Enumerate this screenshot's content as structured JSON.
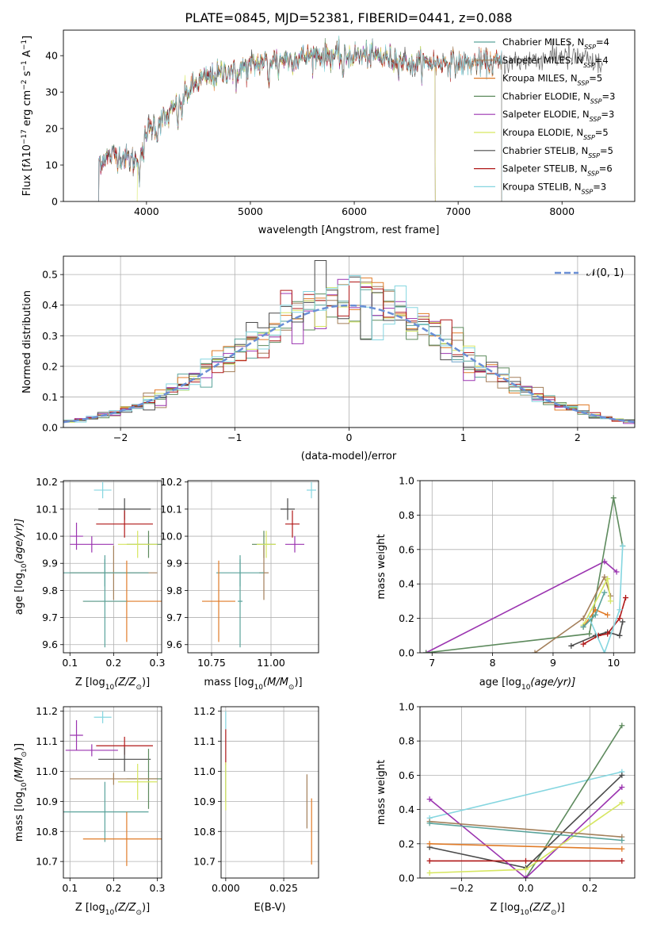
{
  "figure": {
    "title": "PLATE=0845, MJD=52381, FIBERID=0441, z=0.088"
  },
  "models": [
    {
      "name": "Chabrier MILES",
      "nssp": "4",
      "color": "#5aa39b"
    },
    {
      "name": "Salpeter MILES",
      "nssp": "4",
      "color": "#a37f5a"
    },
    {
      "name": "Kroupa MILES",
      "nssp": "5",
      "color": "#e07b28"
    },
    {
      "name": "Chabrier ELODIE",
      "nssp": "3",
      "color": "#5d8a5d"
    },
    {
      "name": "Salpeter ELODIE",
      "nssp": "3",
      "color": "#9b34b0"
    },
    {
      "name": "Kroupa ELODIE",
      "nssp": "5",
      "color": "#d6e660"
    },
    {
      "name": "Chabrier STELIB",
      "nssp": "5",
      "color": "#4a4a4a"
    },
    {
      "name": "Salpeter STELIB",
      "nssp": "6",
      "color": "#b01818"
    },
    {
      "name": "Kroupa STELIB",
      "nssp": "3",
      "color": "#85d6e0"
    }
  ],
  "chart_data": [
    {
      "id": "spectrum",
      "type": "line",
      "xlabel": "wavelength [Angstrom, rest frame]",
      "ylabel_parts": [
        "Flux [f",
        "λ",
        "10",
        "−17",
        " erg cm",
        "−2",
        " s",
        "−1",
        " A",
        "−1",
        "]"
      ],
      "xlim": [
        3200,
        8700
      ],
      "ylim": [
        0,
        47
      ],
      "xticks": [
        4000,
        5000,
        6000,
        7000,
        8000
      ],
      "yticks": [
        0,
        10,
        20,
        30,
        40
      ],
      "legend_position": "top-right",
      "legend_nssp_label": "SSP",
      "continuum": {
        "x": [
          3500,
          3600,
          3700,
          3800,
          3900,
          4000,
          4100,
          4200,
          4300,
          4400,
          4500,
          4600,
          4800,
          5000,
          5200,
          5400,
          5600,
          5800,
          6000,
          6200,
          6400,
          6600,
          6800,
          7000,
          7200,
          7400,
          7600,
          7800,
          8000,
          8200,
          8400
        ],
        "y": [
          10,
          12,
          13,
          12,
          11,
          19,
          22,
          23,
          27,
          30,
          33,
          34,
          36,
          37,
          39,
          39,
          40,
          40,
          40,
          40,
          39,
          38,
          38,
          38,
          38,
          38,
          39,
          39,
          40,
          39,
          37
        ]
      },
      "absorption_lines": [
        {
          "x": 3933,
          "depth": 6
        },
        {
          "x": 3968,
          "depth": 5
        },
        {
          "x": 4102,
          "depth": 4
        },
        {
          "x": 4305,
          "depth": 5
        },
        {
          "x": 4341,
          "depth": 4
        },
        {
          "x": 4861,
          "depth": 5
        },
        {
          "x": 5175,
          "depth": 7
        },
        {
          "x": 5270,
          "depth": 3
        },
        {
          "x": 5893,
          "depth": 6
        },
        {
          "x": 6563,
          "depth": 3
        },
        {
          "x": 7600,
          "depth": 3
        }
      ],
      "model_cutoffs": [
        {
          "model": "Chabrier MILES",
          "min": 3540,
          "max": 7420
        },
        {
          "model": "Salpeter MILES",
          "min": 3540,
          "max": 7420
        },
        {
          "model": "Kroupa MILES",
          "min": 3540,
          "max": 7420
        },
        {
          "model": "Chabrier ELODIE",
          "min": 3540,
          "max": 6780
        },
        {
          "model": "Salpeter ELODIE",
          "min": 3540,
          "max": 6780
        },
        {
          "model": "Kroupa ELODIE",
          "min": 3910,
          "max": 6780
        },
        {
          "model": "Chabrier STELIB",
          "min": 3540,
          "max": 8400
        },
        {
          "model": "Salpeter STELIB",
          "min": 3540,
          "max": 7420
        },
        {
          "model": "Kroupa STELIB",
          "min": 3540,
          "max": 7420
        }
      ]
    },
    {
      "id": "residuals",
      "type": "histogram",
      "xlabel": "(data-model)/error",
      "ylabel": "Normed distribution",
      "xlim": [
        -2.5,
        2.5
      ],
      "ylim": [
        0,
        0.56
      ],
      "xticks": [
        -2,
        -1,
        0,
        1,
        2
      ],
      "yticks": [
        0.0,
        0.1,
        0.2,
        0.3,
        0.4,
        0.5
      ],
      "grid": true,
      "legend_position": "top-right",
      "normal_curve_label": "N(0, 1)",
      "normal_curve_label_math": "𝒩(0, 1)",
      "normal_curve_color": "#6a8fd6",
      "bin_width": 0.1
    },
    {
      "id": "age-vs-Z",
      "type": "errorbar",
      "xlabel_parts": [
        "Z [log",
        "10",
        "(Z/Z",
        "⊙",
        ")]"
      ],
      "ylabel_parts": [
        "age  [log",
        "10",
        "(age/yr)]"
      ],
      "xlim": [
        0.085,
        0.31
      ],
      "ylim": [
        9.57,
        10.205
      ],
      "xticks": [
        0.1,
        0.2,
        0.3
      ],
      "yticks": [
        9.6,
        9.7,
        9.8,
        9.9,
        10.0,
        10.1,
        10.2
      ],
      "grid": true,
      "points": [
        {
          "model": "Kroupa STELIB",
          "x": 0.175,
          "xerr": 0.02,
          "y": 10.17,
          "yerr": 0.03
        },
        {
          "model": "Chabrier STELIB",
          "x": 0.225,
          "xerr": 0.06,
          "y": 10.1,
          "yerr": 0.04
        },
        {
          "model": "Salpeter STELIB",
          "x": 0.225,
          "xerr": 0.065,
          "y": 10.045,
          "yerr": 0.05
        },
        {
          "model": "Salpeter ELODIE",
          "x": 0.115,
          "xerr": 0.015,
          "y": 10.0,
          "yerr": 0.05
        },
        {
          "model": "Chabrier ELODIE",
          "x": 0.28,
          "xerr": 0.05,
          "y": 9.97,
          "yerr": 0.05
        },
        {
          "model": "Salpeter ELODIE",
          "x": 0.15,
          "xerr": 0.05,
          "y": 9.97,
          "yerr": 0.03
        },
        {
          "model": "Kroupa ELODIE",
          "x": 0.255,
          "xerr": 0.045,
          "y": 9.97,
          "yerr": 0.05
        },
        {
          "model": "Salpeter MILES",
          "x": 0.2,
          "xerr": 0.1,
          "y": 9.865,
          "yerr": 0.1
        },
        {
          "model": "Chabrier MILES",
          "x": 0.18,
          "xerr": 0.1,
          "y": 9.865,
          "yerr": 0.05
        },
        {
          "model": "Kroupa MILES",
          "x": 0.23,
          "xerr": 0.1,
          "y": 9.76,
          "yerr": 0.15
        },
        {
          "model": "Chabrier MILES",
          "x": 0.18,
          "xerr": 0.05,
          "y": 9.76,
          "yerr": 0.17
        }
      ]
    },
    {
      "id": "age-vs-mass",
      "type": "errorbar",
      "xlabel_parts": [
        "mass [log",
        "10",
        "(M/M",
        "⊙",
        ")]"
      ],
      "xlim": [
        10.65,
        11.2
      ],
      "ylim": [
        9.57,
        10.205
      ],
      "xticks": [
        10.75,
        11.0
      ],
      "xtick_labels": [
        "10.75",
        "11.00"
      ],
      "yticks": [
        9.6,
        9.7,
        9.8,
        9.9,
        10.0,
        10.1,
        10.2
      ],
      "grid": true,
      "points": [
        {
          "model": "Kroupa STELIB",
          "x": 11.17,
          "xerr": 0.02,
          "y": 10.17,
          "yerr": 0.03
        },
        {
          "model": "Chabrier STELIB",
          "x": 11.07,
          "xerr": 0.03,
          "y": 10.1,
          "yerr": 0.04
        },
        {
          "model": "Salpeter STELIB",
          "x": 11.09,
          "xerr": 0.03,
          "y": 10.045,
          "yerr": 0.05
        },
        {
          "model": "Salpeter ELODIE",
          "x": 11.1,
          "xerr": 0.04,
          "y": 9.97,
          "yerr": 0.03
        },
        {
          "model": "Chabrier ELODIE",
          "x": 10.97,
          "xerr": 0.05,
          "y": 9.97,
          "yerr": 0.05
        },
        {
          "model": "Kroupa ELODIE",
          "x": 10.98,
          "xerr": 0.04,
          "y": 9.97,
          "yerr": 0.05
        },
        {
          "model": "Salpeter MILES",
          "x": 10.97,
          "xerr": 0.02,
          "y": 9.865,
          "yerr": 0.1
        },
        {
          "model": "Chabrier MILES",
          "x": 10.87,
          "xerr": 0.1,
          "y": 9.865,
          "yerr": 0.05
        },
        {
          "model": "Kroupa MILES",
          "x": 10.78,
          "xerr": 0.07,
          "y": 9.76,
          "yerr": 0.15
        },
        {
          "model": "Chabrier MILES",
          "x": 10.87,
          "xerr": 0.01,
          "y": 9.76,
          "yerr": 0.17
        }
      ]
    },
    {
      "id": "massweight-vs-age",
      "type": "line",
      "xlabel_parts": [
        "age  [log",
        "10",
        "(age/yr)]"
      ],
      "ylabel": "mass weight",
      "xlim": [
        6.8,
        10.35
      ],
      "ylim": [
        0,
        1.0
      ],
      "xticks": [
        7,
        8,
        9,
        10
      ],
      "yticks": [
        0.0,
        0.2,
        0.4,
        0.6,
        0.8,
        1.0
      ],
      "grid": true,
      "series": [
        {
          "model": "Salpeter ELODIE",
          "x": [
            6.9,
            9.85,
            10.05
          ],
          "y": [
            0.0,
            0.53,
            0.47
          ]
        },
        {
          "model": "Chabrier ELODIE",
          "x": [
            6.9,
            9.6,
            10.0,
            10.15
          ],
          "y": [
            0.0,
            0.11,
            0.9,
            0.62
          ]
        },
        {
          "model": "Salpeter MILES",
          "x": [
            8.7,
            9.5,
            9.85,
            9.95
          ],
          "y": [
            0.0,
            0.2,
            0.44,
            0.33
          ]
        },
        {
          "model": "Kroupa ELODIE",
          "x": [
            9.5,
            9.9,
            9.95
          ],
          "y": [
            0.16,
            0.43,
            0.3
          ]
        },
        {
          "model": "Kroupa MILES",
          "x": [
            9.5,
            9.7,
            9.9
          ],
          "y": [
            0.15,
            0.25,
            0.22
          ]
        },
        {
          "model": "Chabrier STELIB",
          "x": [
            9.3,
            9.7,
            9.9,
            10.1,
            10.15
          ],
          "y": [
            0.04,
            0.1,
            0.12,
            0.1,
            0.18
          ]
        },
        {
          "model": "Salpeter STELIB",
          "x": [
            9.5,
            9.75,
            9.9,
            10.1,
            10.2
          ],
          "y": [
            0.05,
            0.1,
            0.11,
            0.2,
            0.32
          ]
        },
        {
          "model": "Kroupa STELIB",
          "x": [
            9.6,
            9.85,
            10.1,
            10.15
          ],
          "y": [
            0.2,
            0.0,
            0.25,
            0.62
          ]
        },
        {
          "model": "Chabrier MILES",
          "x": [
            9.5,
            9.7,
            9.85
          ],
          "y": [
            0.15,
            0.22,
            0.35
          ]
        }
      ]
    },
    {
      "id": "mass-vs-Z",
      "type": "errorbar",
      "xlabel_parts": [
        "Z [log",
        "10",
        "(Z/Z",
        "⊙",
        ")]"
      ],
      "ylabel_parts": [
        "mass [log",
        "10",
        "(M/M",
        "⊙",
        ")]"
      ],
      "xlim": [
        0.085,
        0.31
      ],
      "ylim": [
        10.645,
        11.215
      ],
      "xticks": [
        0.1,
        0.2,
        0.3
      ],
      "yticks": [
        10.7,
        10.8,
        10.9,
        11.0,
        11.1,
        11.2
      ],
      "grid": true,
      "points": [
        {
          "model": "Kroupa STELIB",
          "x": 0.175,
          "xerr": 0.02,
          "y": 11.18,
          "yerr": 0.02
        },
        {
          "model": "Salpeter ELODIE",
          "x": 0.115,
          "xerr": 0.015,
          "y": 11.12,
          "yerr": 0.05
        },
        {
          "model": "Salpeter STELIB",
          "x": 0.225,
          "xerr": 0.065,
          "y": 11.085,
          "yerr": 0.03
        },
        {
          "model": "Salpeter ELODIE",
          "x": 0.15,
          "xerr": 0.06,
          "y": 11.07,
          "yerr": 0.02
        },
        {
          "model": "Chabrier STELIB",
          "x": 0.225,
          "xerr": 0.06,
          "y": 11.04,
          "yerr": 0.04
        },
        {
          "model": "Chabrier ELODIE",
          "x": 0.28,
          "xerr": 0.05,
          "y": 10.975,
          "yerr": 0.1
        },
        {
          "model": "Salpeter MILES",
          "x": 0.2,
          "xerr": 0.1,
          "y": 10.975,
          "yerr": 0.02
        },
        {
          "model": "Kroupa ELODIE",
          "x": 0.255,
          "xerr": 0.045,
          "y": 10.965,
          "yerr": 0.06
        },
        {
          "model": "Chabrier MILES",
          "x": 0.18,
          "xerr": 0.1,
          "y": 10.865,
          "yerr": 0.1
        },
        {
          "model": "Kroupa MILES",
          "x": 0.23,
          "xerr": 0.1,
          "y": 10.775,
          "yerr": 0.09
        }
      ]
    },
    {
      "id": "mass-vs-ebv",
      "type": "errorbar",
      "xlabel": "E(B-V)",
      "xlim": [
        -0.002,
        0.04
      ],
      "ylim": [
        10.645,
        11.215
      ],
      "xticks": [
        0.0,
        0.025
      ],
      "xtick_labels": [
        "0.000",
        "0.025"
      ],
      "yticks": [
        10.7,
        10.8,
        10.9,
        11.0,
        11.1,
        11.2
      ],
      "grid": true,
      "points": [
        {
          "model": "Kroupa STELIB",
          "x": 0.0,
          "xerr": 0,
          "y": 11.17,
          "yerr": 0.03
        },
        {
          "model": "Salpeter STELIB",
          "x": 0.0,
          "xerr": 0,
          "y": 11.08,
          "yerr": 0.06
        },
        {
          "model": "Chabrier ELODIE",
          "x": 0.0,
          "xerr": 0,
          "y": 10.96,
          "yerr": 0.06
        },
        {
          "model": "Kroupa ELODIE",
          "x": 0.0,
          "xerr": 0,
          "y": 10.95,
          "yerr": 0.08
        },
        {
          "model": "Salpeter MILES",
          "x": 0.035,
          "xerr": 0,
          "y": 10.9,
          "yerr": 0.09
        },
        {
          "model": "Kroupa MILES",
          "x": 0.037,
          "xerr": 0,
          "y": 10.8,
          "yerr": 0.11
        }
      ]
    },
    {
      "id": "massweight-vs-Z",
      "type": "line",
      "xlabel_parts": [
        "Z [log",
        "10",
        "(Z/Z",
        "⊙",
        ")]"
      ],
      "ylabel": "mass weight",
      "xlim": [
        -0.33,
        0.34
      ],
      "ylim": [
        0,
        1.0
      ],
      "xticks": [
        -0.2,
        0.0,
        0.2
      ],
      "xtick_labels": [
        "−0.2",
        "0.0",
        "0.2"
      ],
      "yticks": [
        0.0,
        0.2,
        0.4,
        0.6,
        0.8,
        1.0
      ],
      "grid": true,
      "series": [
        {
          "model": "Kroupa STELIB",
          "x": [
            -0.3,
            0.3
          ],
          "y": [
            0.35,
            0.62
          ]
        },
        {
          "model": "Chabrier ELODIE",
          "x": [
            0.0,
            0.3
          ],
          "y": [
            0.0,
            0.89
          ]
        },
        {
          "model": "Chabrier STELIB",
          "x": [
            -0.3,
            0.0,
            0.3
          ],
          "y": [
            0.18,
            0.06,
            0.6
          ]
        },
        {
          "model": "Salpeter ELODIE",
          "x": [
            -0.3,
            0.0,
            0.3
          ],
          "y": [
            0.46,
            0.0,
            0.53
          ]
        },
        {
          "model": "Kroupa ELODIE",
          "x": [
            -0.3,
            0.0,
            0.3
          ],
          "y": [
            0.03,
            0.05,
            0.44
          ]
        },
        {
          "model": "Salpeter MILES",
          "x": [
            -0.3,
            0.3
          ],
          "y": [
            0.33,
            0.24
          ]
        },
        {
          "model": "Chabrier MILES",
          "x": [
            -0.3,
            0.3
          ],
          "y": [
            0.32,
            0.22
          ]
        },
        {
          "model": "Kroupa MILES",
          "x": [
            -0.3,
            0.3
          ],
          "y": [
            0.2,
            0.17
          ]
        },
        {
          "model": "Salpeter STELIB",
          "x": [
            -0.3,
            0.0,
            0.3
          ],
          "y": [
            0.1,
            0.1,
            0.1
          ]
        }
      ]
    }
  ]
}
